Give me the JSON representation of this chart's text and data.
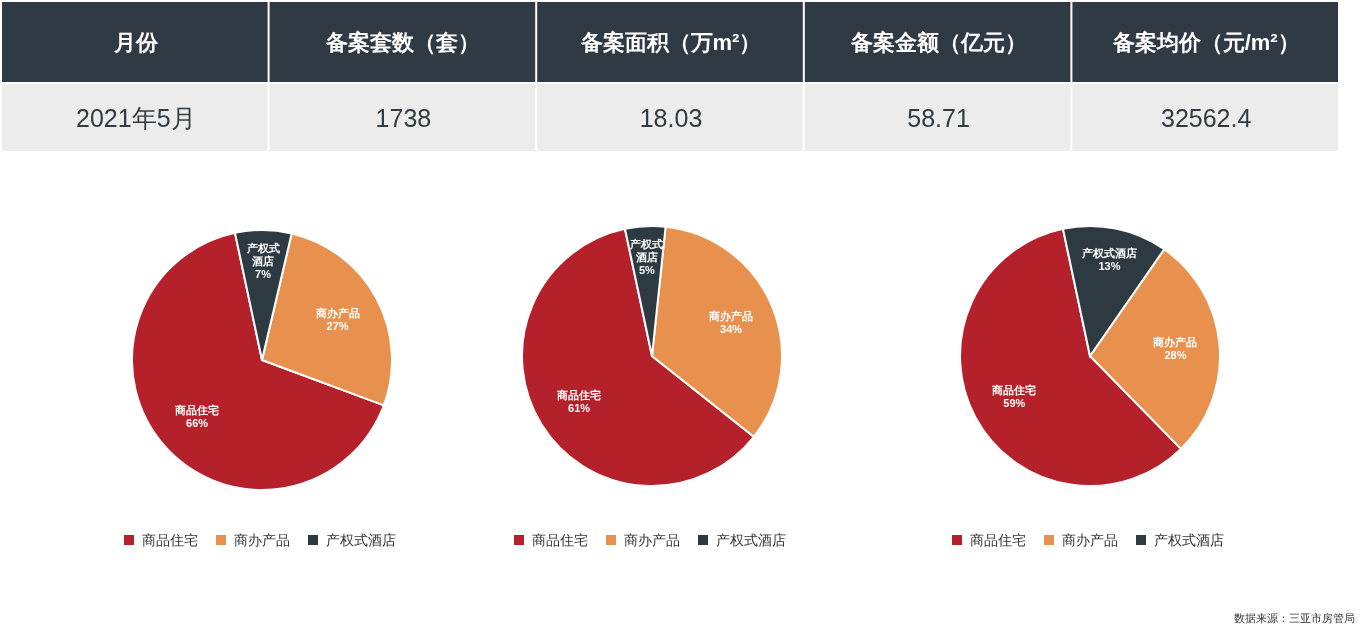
{
  "chart_data": [
    {
      "type": "other",
      "categories": [
        "月份",
        "备案套数（套）",
        "备案面积（万m²）",
        "备案金额（亿元）",
        "备案均价（元/m²）"
      ],
      "value_labels": [
        "2021年5月",
        "1738",
        "18.03",
        "58.71",
        "32562.4"
      ]
    },
    {
      "type": "pie",
      "categories": [
        "商品住宅",
        "商办产品",
        "产权式酒店"
      ],
      "values": [
        66,
        27,
        7
      ],
      "value_labels": [
        "66%",
        "27%",
        "7%"
      ],
      "colors": [
        "#b5212b",
        "#e8914e",
        "#2e3a42"
      ],
      "legend": "bottom"
    },
    {
      "type": "pie",
      "categories": [
        "商品住宅",
        "商办产品",
        "产权式酒店"
      ],
      "values": [
        61,
        34,
        5
      ],
      "value_labels": [
        "61%",
        "34%",
        "5%"
      ],
      "colors": [
        "#b5212b",
        "#e8914e",
        "#2e3a42"
      ],
      "legend": "bottom"
    },
    {
      "type": "pie",
      "categories": [
        "商品住宅",
        "商办产品",
        "产权式酒店"
      ],
      "values": [
        59,
        28,
        13
      ],
      "value_labels": [
        "59%",
        "28%",
        "13%"
      ],
      "colors": [
        "#b5212b",
        "#e8914e",
        "#2e3a42"
      ],
      "legend": "bottom",
      "annotations": [
        "数据来源：三亚市房管局"
      ]
    }
  ]
}
